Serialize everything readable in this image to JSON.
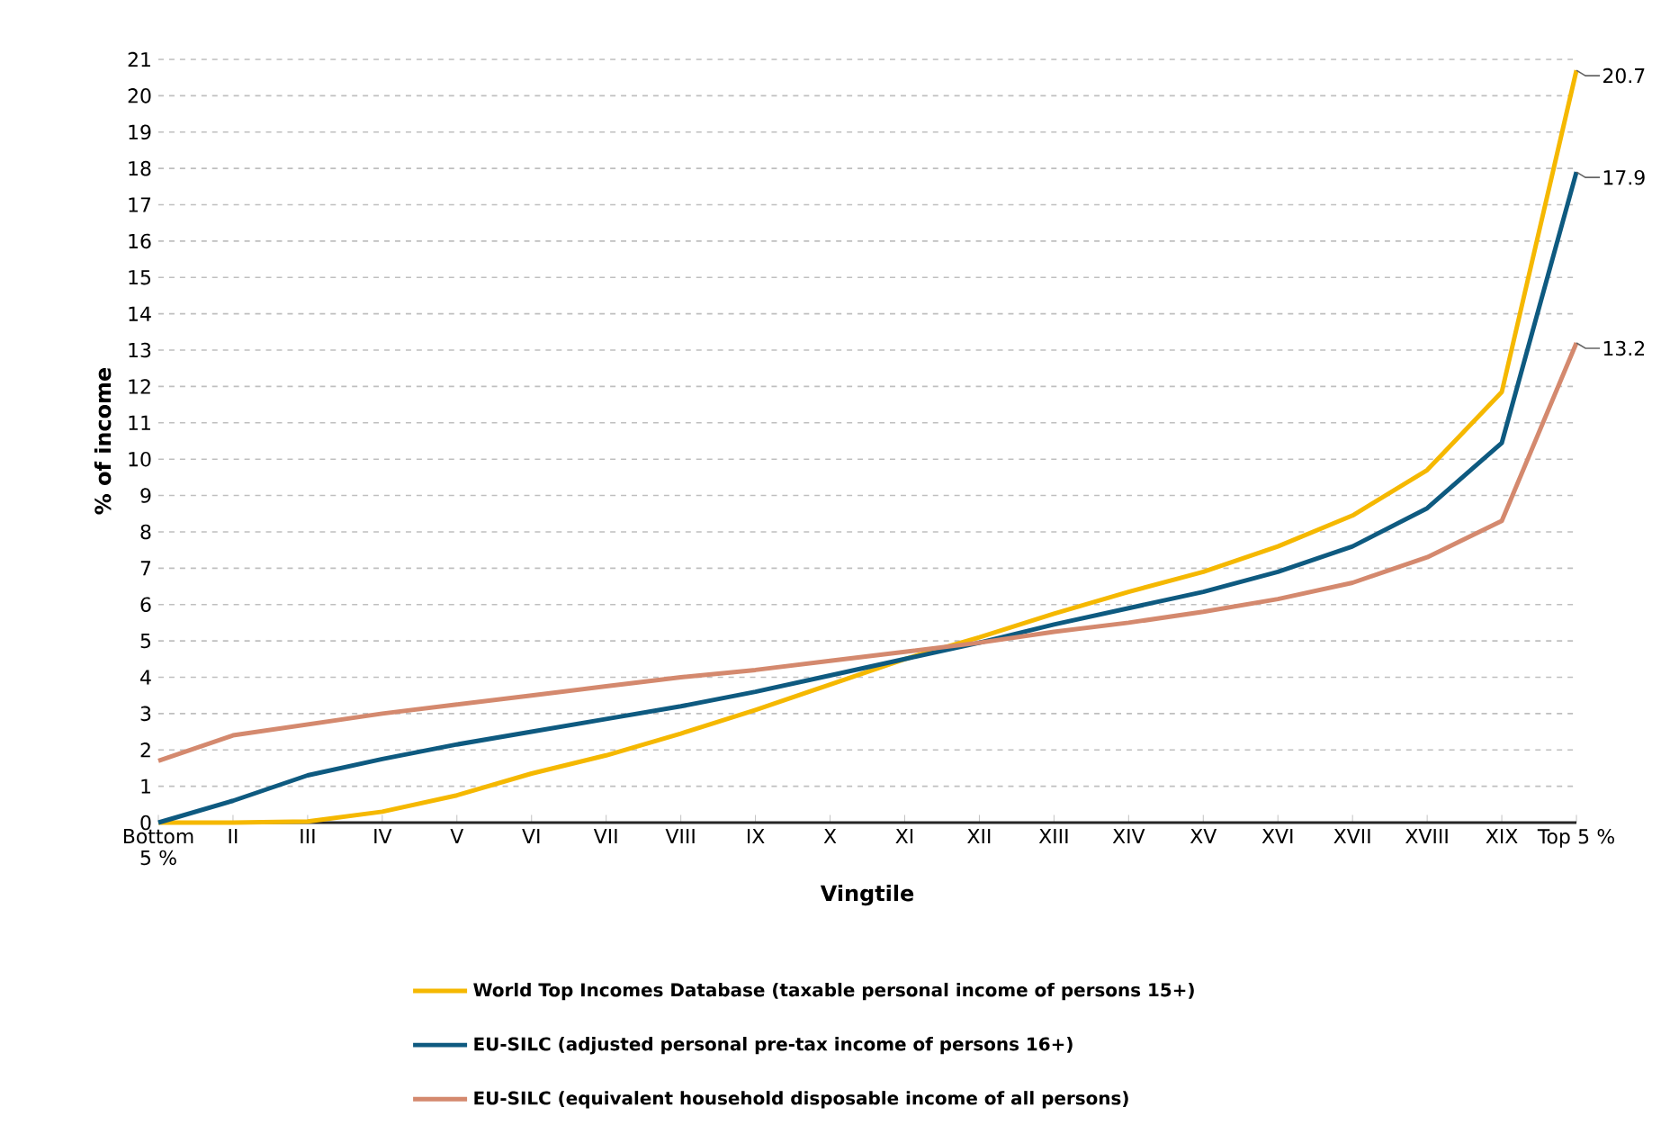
{
  "chart_data": {
    "type": "line",
    "xlabel": "Vingtile",
    "ylabel": "% of income",
    "categories": [
      "Bottom 5 %",
      "II",
      "III",
      "IV",
      "V",
      "VI",
      "VII",
      "VIII",
      "IX",
      "X",
      "XI",
      "XII",
      "XIII",
      "XIV",
      "XV",
      "XVI",
      "XVII",
      "XVIII",
      "XIX",
      "Top 5 %"
    ],
    "ylim": [
      0,
      21
    ],
    "yticks": [
      0,
      1,
      2,
      3,
      4,
      5,
      6,
      7,
      8,
      9,
      10,
      11,
      12,
      13,
      14,
      15,
      16,
      17,
      18,
      19,
      20,
      21
    ],
    "grid": "y",
    "legend": "bottom",
    "marker": "none",
    "line_style": "solid",
    "series": [
      {
        "name": "World Top Incomes Database (taxable personal income of persons 15+)",
        "color": "#f5b800",
        "values": [
          0,
          0,
          0.03,
          0.3,
          0.75,
          1.35,
          1.85,
          2.45,
          3.1,
          3.8,
          4.5,
          5.1,
          5.75,
          6.35,
          6.9,
          7.6,
          8.45,
          9.7,
          11.85,
          20.7
        ],
        "value_labels": [
          null,
          null,
          null,
          null,
          null,
          null,
          null,
          null,
          null,
          null,
          null,
          null,
          null,
          null,
          null,
          null,
          null,
          null,
          null,
          "20.7"
        ]
      },
      {
        "name": "EU-SILC (adjusted personal pre-tax income of persons 16+)",
        "color": "#0e5a80",
        "values": [
          0,
          0.6,
          1.3,
          1.75,
          2.15,
          2.5,
          2.85,
          3.2,
          3.6,
          4.05,
          4.5,
          4.95,
          5.45,
          5.9,
          6.35,
          6.9,
          7.6,
          8.65,
          10.45,
          17.9
        ],
        "value_labels": [
          null,
          null,
          null,
          null,
          null,
          null,
          null,
          null,
          null,
          null,
          null,
          null,
          null,
          null,
          null,
          null,
          null,
          null,
          null,
          "17.9"
        ]
      },
      {
        "name": "EU-SILC (equivalent household disposable income of all persons)",
        "color": "#d4896e",
        "values": [
          1.7,
          2.4,
          2.7,
          3.0,
          3.25,
          3.5,
          3.75,
          4.0,
          4.2,
          4.45,
          4.7,
          4.95,
          5.25,
          5.5,
          5.8,
          6.15,
          6.6,
          7.3,
          8.3,
          13.2
        ],
        "value_labels": [
          null,
          null,
          null,
          null,
          null,
          null,
          null,
          null,
          null,
          null,
          null,
          null,
          null,
          null,
          null,
          null,
          null,
          null,
          null,
          "13.2"
        ]
      }
    ]
  }
}
